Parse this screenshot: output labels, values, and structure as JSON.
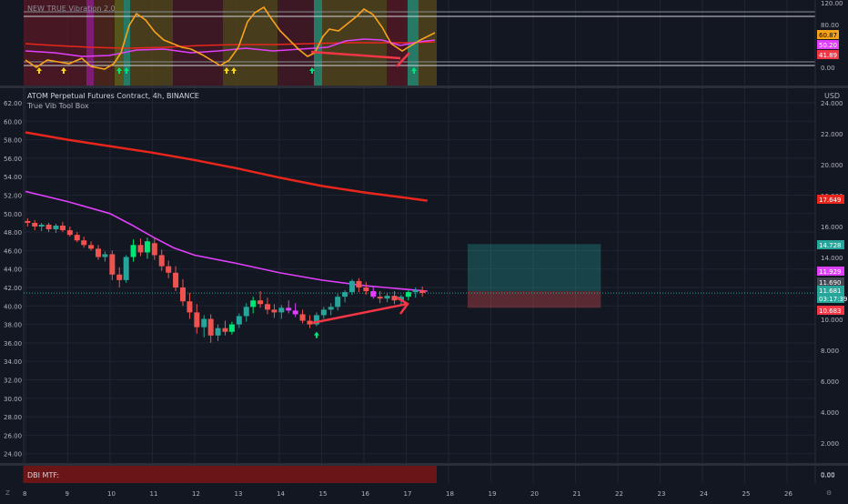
{
  "colors": {
    "background": "#131722",
    "grid": "#1f2431",
    "text": "#b2b5be",
    "up": "#26a69a",
    "down": "#ef5350",
    "bright_up": "#00e676",
    "ma_fast": "#e040fb",
    "ma_slow": "#e8261c",
    "oscillator": "#f7a21b",
    "arrow": "#f23645"
  },
  "indicator_pane": {
    "title": "NEW TRUE Vibration 2.0",
    "y_ticks": [
      "120.00",
      "80.00",
      "0.00"
    ],
    "badges": [
      {
        "value": "60.87",
        "color": "#f7a21b"
      },
      {
        "value": "50.20",
        "color": "#e040fb"
      },
      {
        "value": "41.89",
        "color": "#f23645"
      }
    ]
  },
  "main_pane": {
    "title": "ATOM Perpetual Futures Contract, 4h, BINANCE",
    "subtitle": "True Vib Tool Box",
    "currency": "USD",
    "left_axis": [
      "62.00",
      "60.00",
      "58.00",
      "56.00",
      "54.00",
      "52.00",
      "50.00",
      "48.00",
      "46.00",
      "44.00",
      "42.00",
      "40.00",
      "38.00",
      "36.00",
      "34.00",
      "32.00",
      "30.00",
      "28.00",
      "26.00",
      "24.00"
    ],
    "right_axis": [
      "24.000",
      "22.000",
      "20.000",
      "18.000",
      "16.000",
      "14.000",
      "12.000",
      "10.000",
      "8.000",
      "6.000",
      "4.000",
      "2.000",
      "0.00"
    ],
    "price_badges": [
      {
        "value": "17.649",
        "color": "#e8261c"
      },
      {
        "value": "14.728",
        "color": "#26a69a"
      },
      {
        "value": "11.929",
        "color": "#e040fb"
      },
      {
        "value": "11.690",
        "color": "#434651"
      },
      {
        "value": "11.681",
        "color": "#26a69a"
      },
      {
        "value": "03:17:39",
        "color": "#26a69a"
      },
      {
        "value": "10.683",
        "color": "#f23645"
      }
    ]
  },
  "bottom_pane": {
    "label": "DBI MTF:"
  },
  "x_axis": {
    "labels": [
      "8",
      "9",
      "10",
      "11",
      "12",
      "13",
      "14",
      "15",
      "16",
      "17",
      "18",
      "19",
      "20",
      "21",
      "22",
      "23",
      "24",
      "25",
      "26"
    ]
  },
  "chart_data": {
    "type": "candlestick",
    "x_unit": "day (4h bars)",
    "y_unit": "USD",
    "ylim": [
      22.5,
      63.5
    ],
    "candles": [
      [
        8.05,
        49.2,
        49.5,
        48.6,
        49.0
      ],
      [
        8.22,
        49.0,
        49.3,
        48.2,
        48.6
      ],
      [
        8.38,
        48.6,
        49.0,
        48.1,
        48.8
      ],
      [
        8.55,
        48.8,
        49.0,
        48.0,
        48.3
      ],
      [
        8.72,
        48.3,
        48.9,
        47.9,
        48.7
      ],
      [
        8.88,
        48.7,
        49.1,
        48.0,
        48.2
      ],
      [
        9.05,
        48.2,
        48.6,
        47.5,
        47.7
      ],
      [
        9.22,
        47.7,
        48.0,
        46.9,
        47.1
      ],
      [
        9.38,
        47.1,
        47.5,
        46.3,
        46.6
      ],
      [
        9.55,
        46.6,
        47.0,
        46.0,
        46.2
      ],
      [
        9.72,
        46.2,
        46.6,
        45.0,
        45.3
      ],
      [
        9.88,
        45.3,
        45.9,
        44.8,
        45.6
      ],
      [
        10.05,
        45.6,
        46.0,
        42.8,
        43.4
      ],
      [
        10.22,
        43.4,
        44.2,
        42.0,
        42.8
      ],
      [
        10.38,
        42.8,
        45.5,
        42.5,
        45.3
      ],
      [
        10.55,
        45.3,
        47.2,
        44.8,
        46.6
      ],
      [
        10.72,
        46.6,
        47.3,
        45.4,
        45.8
      ],
      [
        10.88,
        45.8,
        47.4,
        45.1,
        47.0
      ],
      [
        11.05,
        46.8,
        47.4,
        45.0,
        45.5
      ],
      [
        11.22,
        45.5,
        46.1,
        43.8,
        44.3
      ],
      [
        11.38,
        44.3,
        44.9,
        43.0,
        43.6
      ],
      [
        11.55,
        43.6,
        44.3,
        41.6,
        42.0
      ],
      [
        11.72,
        42.0,
        42.9,
        40.0,
        40.5
      ],
      [
        11.88,
        40.5,
        41.4,
        38.6,
        39.3
      ],
      [
        12.05,
        39.3,
        40.2,
        37.0,
        37.7
      ],
      [
        12.22,
        37.7,
        39.0,
        36.6,
        38.6
      ],
      [
        12.38,
        38.6,
        39.1,
        36.0,
        36.8
      ],
      [
        12.55,
        36.8,
        38.0,
        36.2,
        37.6
      ],
      [
        12.72,
        37.6,
        38.4,
        36.8,
        37.2
      ],
      [
        12.88,
        37.2,
        38.3,
        36.9,
        38.0
      ],
      [
        13.05,
        38.0,
        39.2,
        37.6,
        38.9
      ],
      [
        13.22,
        38.9,
        40.3,
        38.3,
        39.9
      ],
      [
        13.38,
        39.9,
        41.0,
        39.2,
        40.6
      ],
      [
        13.55,
        40.6,
        41.6,
        39.8,
        40.2
      ],
      [
        13.72,
        40.2,
        40.9,
        39.1,
        39.6
      ],
      [
        13.88,
        39.6,
        40.2,
        38.7,
        39.3
      ],
      [
        14.05,
        39.3,
        40.1,
        38.6,
        39.8
      ],
      [
        14.22,
        39.8,
        40.6,
        39.2,
        39.5
      ],
      [
        14.38,
        39.5,
        40.3,
        38.8,
        39.1
      ],
      [
        14.55,
        39.1,
        39.6,
        38.1,
        38.4
      ],
      [
        14.72,
        38.4,
        39.0,
        37.6,
        38.0
      ],
      [
        14.88,
        38.0,
        39.3,
        37.8,
        39.0
      ],
      [
        15.05,
        39.0,
        39.9,
        38.6,
        39.6
      ],
      [
        15.22,
        39.6,
        40.3,
        39.0,
        39.9
      ],
      [
        15.38,
        39.9,
        41.3,
        39.5,
        41.0
      ],
      [
        15.55,
        41.0,
        41.7,
        40.4,
        41.5
      ],
      [
        15.72,
        41.5,
        42.9,
        41.2,
        42.7
      ],
      [
        15.88,
        42.7,
        43.0,
        41.5,
        42.0
      ],
      [
        16.05,
        42.0,
        42.6,
        41.2,
        41.6
      ],
      [
        16.22,
        41.6,
        42.1,
        40.8,
        41.0
      ],
      [
        16.38,
        41.0,
        41.6,
        40.3,
        40.8
      ],
      [
        16.55,
        40.8,
        41.4,
        40.4,
        41.1
      ],
      [
        16.72,
        41.1,
        41.6,
        40.2,
        40.6
      ],
      [
        16.88,
        40.6,
        41.2,
        40.1,
        41.0
      ],
      [
        17.05,
        41.0,
        41.7,
        40.6,
        41.5
      ],
      [
        17.22,
        41.5,
        42.0,
        40.9,
        41.7
      ],
      [
        17.38,
        41.7,
        42.1,
        41.0,
        41.4
      ]
    ],
    "ma_slow": [
      [
        8.0,
        58.8
      ],
      [
        9.0,
        58.0
      ],
      [
        10.0,
        57.3
      ],
      [
        11.0,
        56.6
      ],
      [
        12.0,
        55.8
      ],
      [
        13.0,
        54.9
      ],
      [
        14.0,
        53.9
      ],
      [
        15.0,
        53.0
      ],
      [
        16.0,
        52.3
      ],
      [
        17.0,
        51.7
      ],
      [
        17.5,
        51.4
      ]
    ],
    "ma_fast": [
      [
        8.0,
        52.4
      ],
      [
        9.0,
        51.3
      ],
      [
        10.0,
        50.0
      ],
      [
        10.5,
        48.8
      ],
      [
        11.0,
        47.5
      ],
      [
        11.5,
        46.3
      ],
      [
        12.0,
        45.5
      ],
      [
        13.0,
        44.6
      ],
      [
        14.0,
        43.6
      ],
      [
        15.0,
        42.8
      ],
      [
        16.0,
        42.2
      ],
      [
        16.5,
        42.0
      ],
      [
        17.0,
        41.8
      ],
      [
        17.5,
        41.6
      ]
    ],
    "zones": [
      {
        "x_start": 18.45,
        "x_end": 21.6,
        "y_from": 41.6,
        "y_to": 46.7,
        "color": "#26a69a"
      },
      {
        "x_start": 18.45,
        "x_end": 21.6,
        "y_from": 39.8,
        "y_to": 41.6,
        "color": "#ef5350"
      }
    ]
  }
}
